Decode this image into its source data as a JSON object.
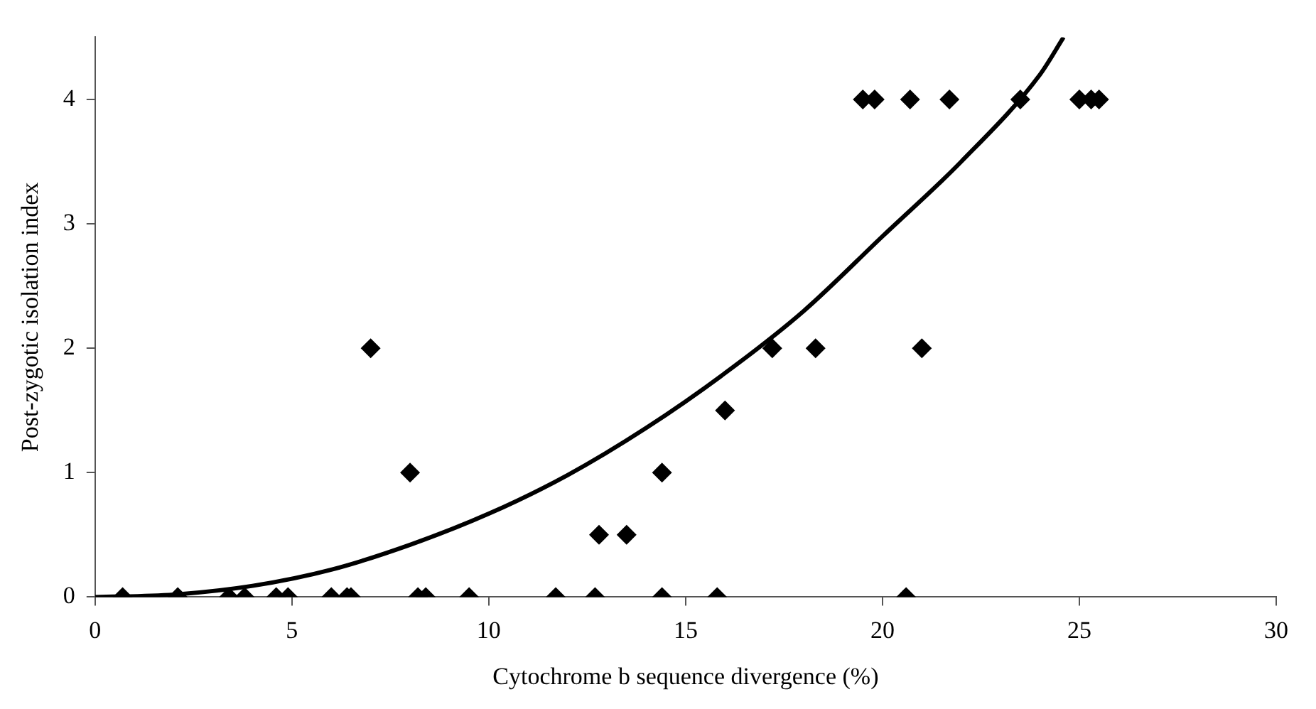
{
  "chart_data": {
    "type": "scatter",
    "xlabel": "Cytochrome b sequence divergence (%)",
    "ylabel": "Post-zygotic isolation index",
    "xlim": [
      0,
      30
    ],
    "xticks": [
      0,
      5,
      10,
      15,
      20,
      25,
      30
    ],
    "ylim": [
      0,
      4.5
    ],
    "yticks": [
      0,
      1,
      2,
      3,
      4
    ],
    "grid": false,
    "legend": false,
    "marker": "diamond",
    "series": [
      {
        "type": "scatter",
        "color": "#000000",
        "x": [
          0.7,
          2.1,
          3.4,
          3.8,
          4.6,
          4.9,
          6.0,
          6.4,
          6.5,
          8.2,
          8.4,
          9.5,
          11.7,
          12.7,
          14.4,
          15.8,
          20.6,
          12.8,
          13.5,
          7.0,
          8.0,
          14.4,
          16.0,
          17.2,
          18.3,
          21.0,
          19.5,
          19.8,
          20.7,
          21.7,
          23.5,
          25.0,
          25.3,
          25.5
        ],
        "values": [
          0,
          0,
          0,
          0,
          0,
          0,
          0,
          0,
          0,
          0,
          0,
          0,
          0,
          0,
          0,
          0,
          0,
          0.5,
          0.5,
          2,
          1,
          1,
          1.5,
          2,
          2,
          2,
          4,
          4,
          4,
          4,
          4,
          4,
          4,
          4
        ]
      },
      {
        "type": "line",
        "color": "#000000",
        "marker": "none",
        "line_style": "solid",
        "x": [
          0,
          2,
          4,
          6,
          8,
          10,
          12,
          14,
          16,
          18,
          20,
          22,
          24,
          24.6
        ],
        "values": [
          0,
          0.02,
          0.09,
          0.22,
          0.42,
          0.67,
          0.98,
          1.36,
          1.8,
          2.3,
          2.9,
          3.5,
          4.2,
          4.5
        ]
      }
    ]
  }
}
